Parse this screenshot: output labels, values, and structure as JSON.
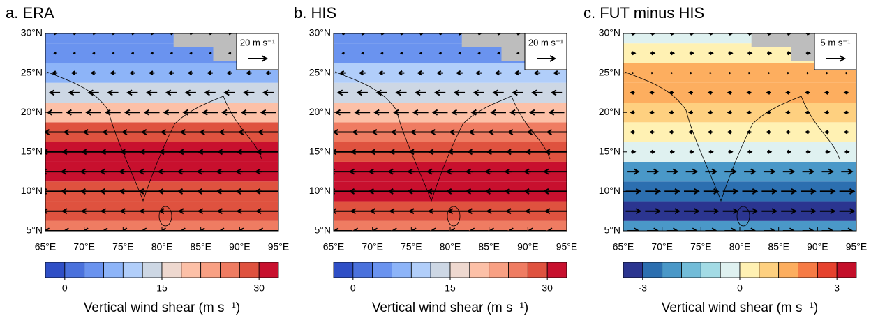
{
  "chart_data": [
    {
      "type": "contour-map",
      "title": "a. ERA",
      "xlim": [
        65,
        95
      ],
      "ylim": [
        5,
        30
      ],
      "xticks": [
        {
          "value": 65,
          "label": "65°E"
        },
        {
          "value": 70,
          "label": "70°E"
        },
        {
          "value": 75,
          "label": "75°E"
        },
        {
          "value": 80,
          "label": "80°E"
        },
        {
          "value": 85,
          "label": "85°E"
        },
        {
          "value": 90,
          "label": "90°E"
        },
        {
          "value": 95,
          "label": "95°E"
        }
      ],
      "yticks": [
        {
          "value": 5,
          "label": "5°N"
        },
        {
          "value": 10,
          "label": "10°N"
        },
        {
          "value": 15,
          "label": "15°N"
        },
        {
          "value": 20,
          "label": "20°N"
        },
        {
          "value": 25,
          "label": "25°N"
        },
        {
          "value": 30,
          "label": "30°N"
        }
      ],
      "lat": [
        5,
        7.5,
        10,
        12.5,
        15,
        17.5,
        20,
        22.5,
        25,
        27.5,
        30
      ],
      "shear": [
        25,
        27,
        29,
        31,
        30,
        27,
        20,
        13,
        7,
        5,
        4
      ],
      "u": [
        -22,
        -26,
        -28,
        -28,
        -26,
        -22,
        -16,
        -11,
        -5,
        -1,
        2
      ],
      "reference_vector": {
        "value": 20,
        "label": "20 m s⁻¹"
      },
      "levels": [
        0,
        3,
        6,
        9,
        12,
        15,
        18,
        21,
        24,
        27,
        30
      ],
      "colors": [
        "#2f4fc6",
        "#4a71dc",
        "#6a93ef",
        "#8db4f8",
        "#b1cefa",
        "#cdd7e4",
        "#eed8cf",
        "#fcc0a7",
        "#f8a083",
        "#ef7c62",
        "#df523f",
        "#c8102e"
      ],
      "colorbar_ticks": [
        0,
        15,
        30
      ],
      "colorbar_label": "Vertical wind shear (m s⁻¹)"
    },
    {
      "type": "contour-map",
      "title": "b. HIS",
      "xlim": [
        65,
        95
      ],
      "ylim": [
        5,
        30
      ],
      "xticks": [
        {
          "value": 65,
          "label": "65°E"
        },
        {
          "value": 70,
          "label": "70°E"
        },
        {
          "value": 75,
          "label": "75°E"
        },
        {
          "value": 80,
          "label": "80°E"
        },
        {
          "value": 85,
          "label": "85°E"
        },
        {
          "value": 90,
          "label": "90°E"
        },
        {
          "value": 95,
          "label": "95°E"
        }
      ],
      "yticks": [
        {
          "value": 5,
          "label": "5°N"
        },
        {
          "value": 10,
          "label": "10°N"
        },
        {
          "value": 15,
          "label": "15°N"
        },
        {
          "value": 20,
          "label": "20°N"
        },
        {
          "value": 25,
          "label": "25°N"
        },
        {
          "value": 30,
          "label": "30°N"
        }
      ],
      "lat": [
        5,
        7.5,
        10,
        12.5,
        15,
        17.5,
        20,
        22.5,
        25,
        27.5,
        30
      ],
      "shear": [
        24,
        27,
        30,
        31,
        28,
        24,
        19,
        14,
        9,
        5,
        3
      ],
      "u": [
        -20,
        -25,
        -28,
        -28,
        -25,
        -21,
        -16,
        -11,
        -6,
        -1,
        3
      ],
      "reference_vector": {
        "value": 20,
        "label": "20 m s⁻¹"
      },
      "levels": [
        0,
        3,
        6,
        9,
        12,
        15,
        18,
        21,
        24,
        27,
        30
      ],
      "colors": [
        "#2f4fc6",
        "#4a71dc",
        "#6a93ef",
        "#8db4f8",
        "#b1cefa",
        "#cdd7e4",
        "#eed8cf",
        "#fcc0a7",
        "#f8a083",
        "#ef7c62",
        "#df523f",
        "#c8102e"
      ],
      "colorbar_ticks": [
        0,
        15,
        30
      ],
      "colorbar_label": "Vertical wind shear (m s⁻¹)"
    },
    {
      "type": "contour-map",
      "title": "c. FUT minus HIS",
      "xlim": [
        65,
        95
      ],
      "ylim": [
        5,
        30
      ],
      "xticks": [
        {
          "value": 65,
          "label": "65°E"
        },
        {
          "value": 70,
          "label": "70°E"
        },
        {
          "value": 75,
          "label": "75°E"
        },
        {
          "value": 80,
          "label": "80°E"
        },
        {
          "value": 85,
          "label": "85°E"
        },
        {
          "value": 90,
          "label": "90°E"
        },
        {
          "value": 95,
          "label": "95°E"
        }
      ],
      "yticks": [
        {
          "value": 5,
          "label": "5°N"
        },
        {
          "value": 10,
          "label": "10°N"
        },
        {
          "value": 15,
          "label": "15°N"
        },
        {
          "value": 20,
          "label": "20°N"
        },
        {
          "value": 25,
          "label": "25°N"
        },
        {
          "value": 30,
          "label": "30°N"
        }
      ],
      "lat": [
        5,
        7.5,
        10,
        12.5,
        15,
        17.5,
        20,
        22.5,
        25,
        27.5,
        30
      ],
      "shear": [
        -2,
        -3.5,
        -3,
        -2,
        -0.5,
        0.5,
        1,
        1.5,
        1.5,
        0.5,
        -0.5
      ],
      "u": [
        3,
        4,
        4,
        3,
        1,
        -1,
        -1,
        -1,
        0,
        1,
        1
      ],
      "reference_vector": {
        "value": 5,
        "label": "5 m s⁻¹"
      },
      "levels": [
        -3,
        -2.4,
        -1.8,
        -1.2,
        -0.6,
        0,
        0.6,
        1.2,
        1.8,
        2.4,
        3
      ],
      "colors": [
        "#2b3590",
        "#2c6fb0",
        "#4a98c8",
        "#72bcd8",
        "#a3dbe5",
        "#dff1f0",
        "#fff1b3",
        "#fed080",
        "#fdae5f",
        "#f67b45",
        "#e6422e",
        "#c40f2a"
      ],
      "colorbar_ticks": [
        -3,
        0,
        3
      ],
      "colorbar_label": "Vertical wind shear (m s⁻¹)"
    }
  ]
}
